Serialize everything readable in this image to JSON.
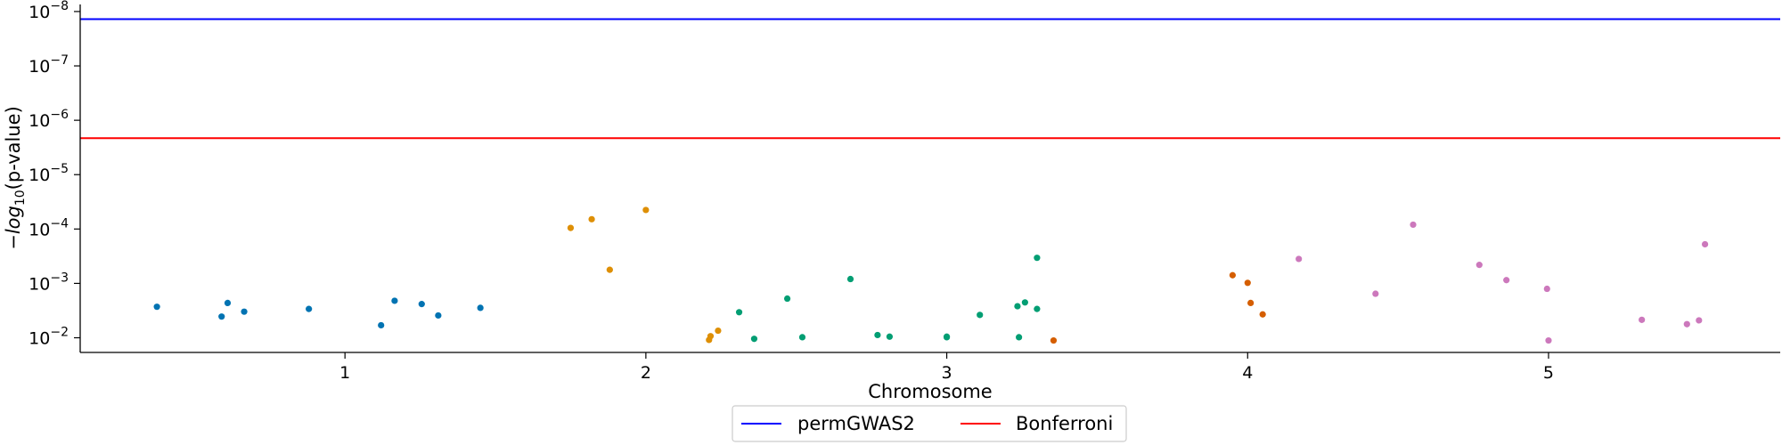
{
  "chart_data": {
    "type": "scatter",
    "title": "",
    "xlabel": "Chromosome",
    "ylabel_prefix": "−",
    "ylabel_log": "log",
    "ylabel_sub": "10",
    "ylabel_suffix": "(p-value)",
    "xticks": [
      1,
      2,
      3,
      4,
      5
    ],
    "xlim": [
      0.12,
      5.77
    ],
    "yscale": "log",
    "ylim_exponent": [
      -1.73,
      -8.13
    ],
    "yticks": [
      {
        "exp": -8,
        "base": "10",
        "sup": "−8"
      },
      {
        "exp": -7,
        "base": "10",
        "sup": "−7"
      },
      {
        "exp": -6,
        "base": "10",
        "sup": "−6"
      },
      {
        "exp": -5,
        "base": "10",
        "sup": "−5"
      },
      {
        "exp": -4,
        "base": "10",
        "sup": "−4"
      },
      {
        "exp": -3,
        "base": "10",
        "sup": "−3"
      },
      {
        "exp": -2,
        "base": "10",
        "sup": "−2"
      }
    ],
    "grid": false,
    "legend_position": "bottom-center",
    "thresholds": [
      {
        "name": "permGWAS2",
        "exponent": -7.86,
        "color": "#0000ff"
      },
      {
        "name": "Bonferroni",
        "exponent": -5.67,
        "color": "#ff0000"
      }
    ],
    "series": [
      {
        "color": "#0173b2",
        "points": [
          {
            "x": 0.375,
            "y": -2.57
          },
          {
            "x": 0.59,
            "y": -2.39
          },
          {
            "x": 0.61,
            "y": -2.64
          },
          {
            "x": 0.665,
            "y": -2.48
          },
          {
            "x": 0.88,
            "y": -2.53
          },
          {
            "x": 1.12,
            "y": -2.23
          },
          {
            "x": 1.165,
            "y": -2.68
          },
          {
            "x": 1.255,
            "y": -2.62
          },
          {
            "x": 1.31,
            "y": -2.41
          },
          {
            "x": 1.45,
            "y": -2.55
          }
        ]
      },
      {
        "color": "#de8f05",
        "points": [
          {
            "x": 1.75,
            "y": -4.02
          },
          {
            "x": 1.82,
            "y": -4.18
          },
          {
            "x": 1.88,
            "y": -3.25
          },
          {
            "x": 2.0,
            "y": -4.35
          },
          {
            "x": 2.21,
            "y": -1.96
          },
          {
            "x": 2.215,
            "y": -2.03
          },
          {
            "x": 2.24,
            "y": -2.13
          }
        ]
      },
      {
        "color": "#029e73",
        "points": [
          {
            "x": 2.31,
            "y": -2.47
          },
          {
            "x": 2.36,
            "y": -1.98
          },
          {
            "x": 2.47,
            "y": -2.72
          },
          {
            "x": 2.52,
            "y": -2.01
          },
          {
            "x": 2.68,
            "y": -3.08
          },
          {
            "x": 2.77,
            "y": -2.05
          },
          {
            "x": 2.81,
            "y": -2.02
          },
          {
            "x": 3.0,
            "y": -2.02
          },
          {
            "x": 3.0,
            "y": -2.01
          },
          {
            "x": 3.11,
            "y": -2.42
          },
          {
            "x": 3.235,
            "y": -2.58
          },
          {
            "x": 3.24,
            "y": -2.01
          },
          {
            "x": 3.26,
            "y": -2.65
          },
          {
            "x": 3.3,
            "y": -2.53
          },
          {
            "x": 3.3,
            "y": -3.47
          }
        ]
      },
      {
        "color": "#d55e00",
        "points": [
          {
            "x": 3.355,
            "y": -1.95
          },
          {
            "x": 3.95,
            "y": -3.15
          },
          {
            "x": 4.0,
            "y": -3.01
          },
          {
            "x": 4.01,
            "y": -2.64
          },
          {
            "x": 4.05,
            "y": -2.43
          }
        ]
      },
      {
        "color": "#cc78bc",
        "points": [
          {
            "x": 4.17,
            "y": -3.45
          },
          {
            "x": 4.425,
            "y": -2.81
          },
          {
            "x": 4.55,
            "y": -4.08
          },
          {
            "x": 4.77,
            "y": -3.34
          },
          {
            "x": 4.86,
            "y": -3.06
          },
          {
            "x": 4.995,
            "y": -2.9
          },
          {
            "x": 5.0,
            "y": -1.95
          },
          {
            "x": 5.31,
            "y": -2.33
          },
          {
            "x": 5.46,
            "y": -2.25
          },
          {
            "x": 5.5,
            "y": -2.32
          },
          {
            "x": 5.52,
            "y": -3.72
          }
        ]
      }
    ]
  }
}
